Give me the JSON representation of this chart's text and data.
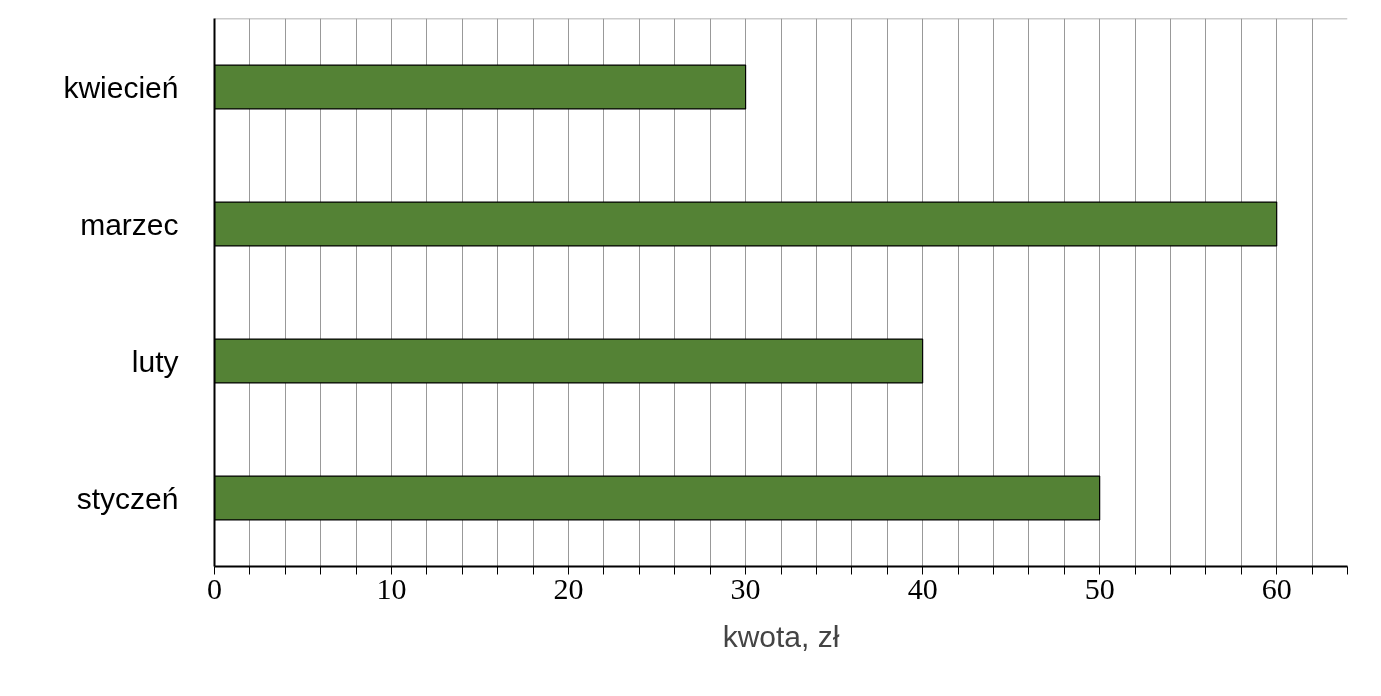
{
  "chart_data": {
    "type": "bar",
    "orientation": "horizontal",
    "categories": [
      "kwiecień",
      "marzec",
      "luty",
      "styczeń"
    ],
    "values": [
      30,
      60,
      40,
      50
    ],
    "color": "#548235",
    "xlabel": "kwota, zł",
    "xlim": [
      0,
      64
    ],
    "xticks": [
      0,
      {
        "value": 2,
        "label": null
      },
      {
        "value": 4,
        "label": null
      },
      {
        "value": 6,
        "label": null
      },
      {
        "value": 8,
        "label": null
      },
      10,
      {
        "value": 12,
        "label": null
      },
      {
        "value": 14,
        "label": null
      },
      {
        "value": 16,
        "label": null
      },
      {
        "value": 18,
        "label": null
      },
      20,
      {
        "value": 22,
        "label": null
      },
      {
        "value": 24,
        "label": null
      },
      {
        "value": 26,
        "label": null
      },
      {
        "value": 28,
        "label": null
      },
      30,
      {
        "value": 32,
        "label": null
      },
      {
        "value": 34,
        "label": null
      },
      {
        "value": 36,
        "label": null
      },
      {
        "value": 38,
        "label": null
      },
      40,
      {
        "value": 42,
        "label": null
      },
      {
        "value": 44,
        "label": null
      },
      {
        "value": 46,
        "label": null
      },
      {
        "value": 48,
        "label": null
      },
      50,
      {
        "value": 52,
        "label": null
      },
      {
        "value": 54,
        "label": null
      },
      {
        "value": 56,
        "label": null
      },
      {
        "value": 58,
        "label": null
      },
      60,
      {
        "value": 62,
        "label": null
      },
      {
        "value": 64,
        "label": null
      }
    ],
    "grid": "x"
  }
}
